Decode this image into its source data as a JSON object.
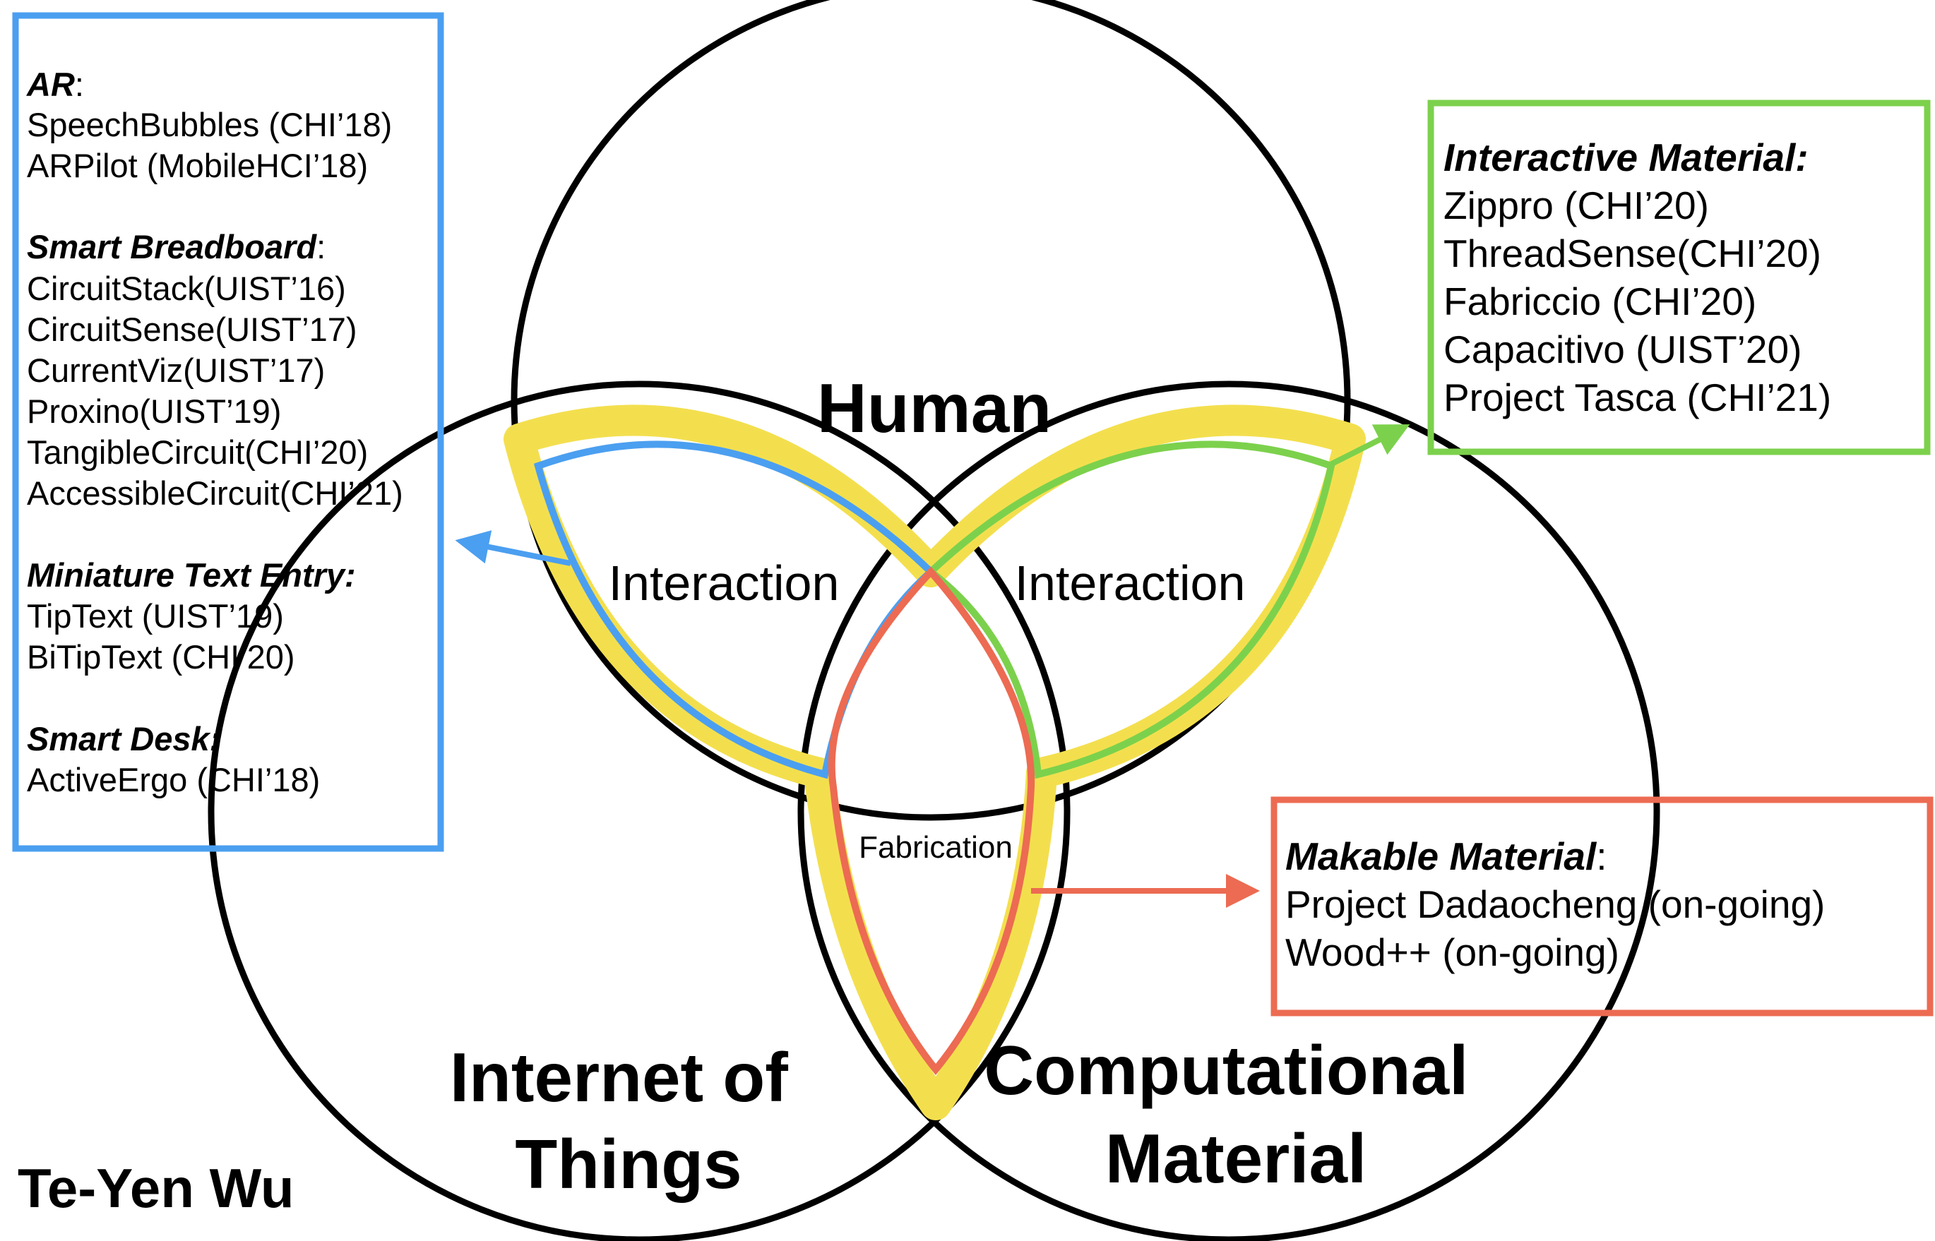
{
  "author": "Te-Yen Wu",
  "circles": {
    "top": "Human",
    "left": [
      "Internet of",
      "Things"
    ],
    "right": [
      "Computational",
      "Material"
    ]
  },
  "regions": {
    "left_overlap": "Interaction",
    "right_overlap": "Interaction",
    "bottom_overlap": "Fabrication"
  },
  "colors": {
    "blue": "#4b9ff0",
    "green": "#7cd14c",
    "red": "#ec6b52",
    "yellow": "#f3df4e",
    "outline": "#000000"
  },
  "boxes": {
    "blue": {
      "sections": [
        {
          "heading": "AR",
          "suffix": ":",
          "items": [
            "SpeechBubbles (CHI’18)",
            "ARPilot (MobileHCI’18)"
          ]
        },
        {
          "heading": "Smart Breadboard",
          "suffix": ":",
          "items": [
            "CircuitStack(UIST’16)",
            "CircuitSense(UIST’17)",
            "CurrentViz(UIST’17)",
            "Proxino(UIST’19)",
            "TangibleCircuit(CHI’20)",
            "AccessibleCircuit(CHI’21)"
          ]
        },
        {
          "heading": "Miniature Text Entry:",
          "suffix": "",
          "items": [
            "TipText (UIST’19)",
            "BiTipText (CHI’20)"
          ]
        },
        {
          "heading": "Smart Desk:",
          "suffix": "",
          "items": [
            "ActiveErgo (CHI’18)"
          ]
        }
      ]
    },
    "green": {
      "heading": "Interactive Material:",
      "items": [
        "Zippro (CHI’20)",
        "ThreadSense(CHI’20)",
        "Fabriccio (CHI’20)",
        "Capacitivo (UIST’20)",
        "Project Tasca (CHI’21)"
      ]
    },
    "red": {
      "heading": "Makable Material",
      "suffix": ":",
      "items": [
        "Project Dadaocheng (on-going)",
        "Wood++ (on-going)"
      ]
    }
  }
}
